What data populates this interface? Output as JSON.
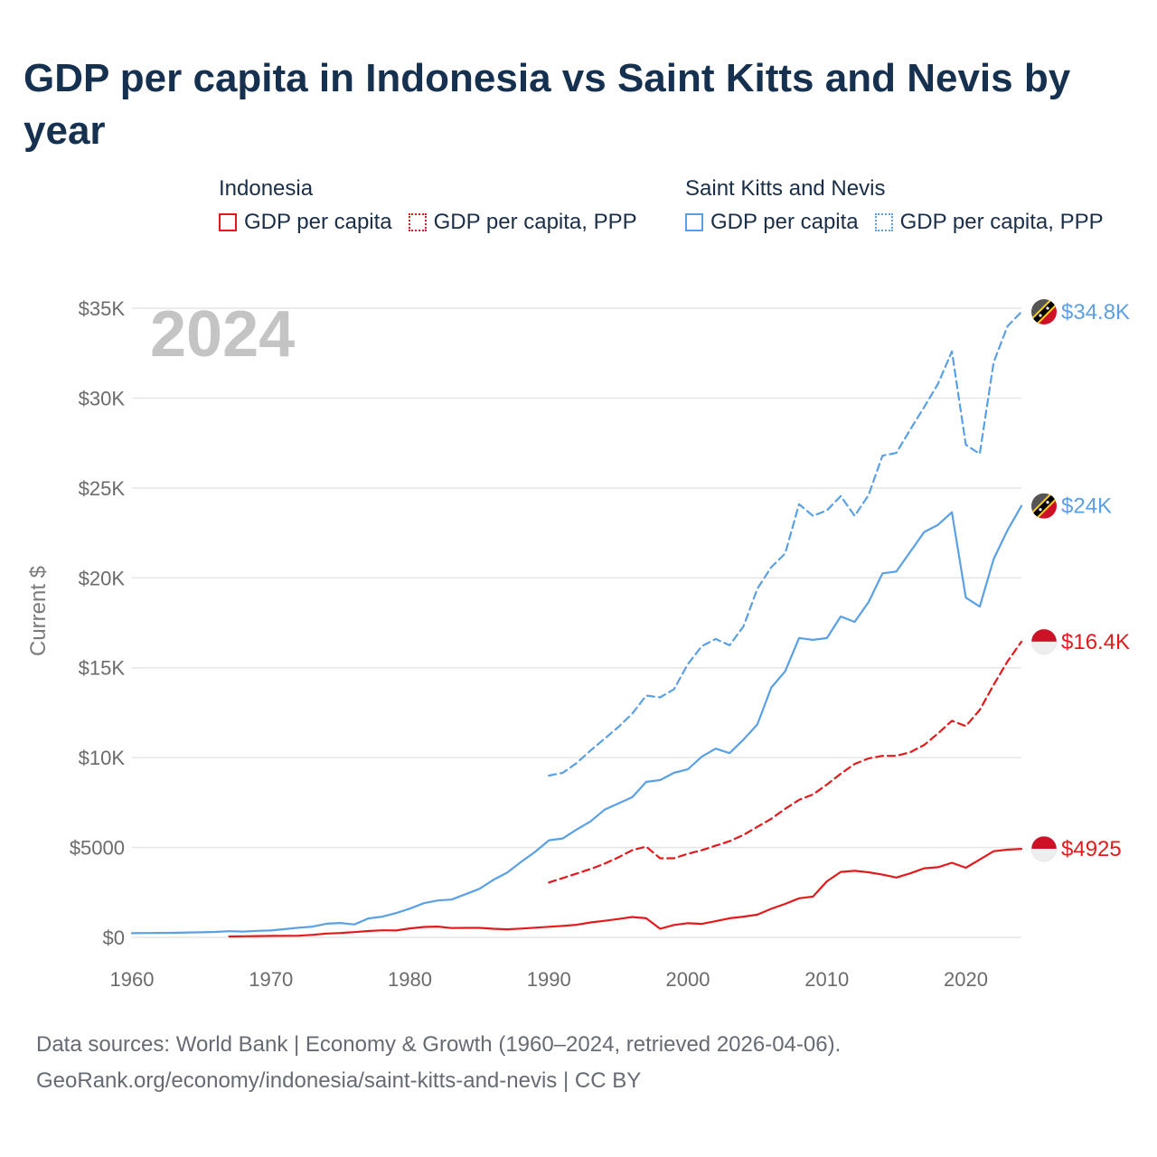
{
  "title": "GDP per capita in Indonesia vs Saint Kitts and Nevis by year",
  "legend": {
    "groups": [
      {
        "name": "Indonesia",
        "items": [
          {
            "label": "GDP per capita",
            "style": "solid",
            "color": "#e31a1c"
          },
          {
            "label": "GDP per capita, PPP",
            "style": "dotted",
            "color": "#e31a1c"
          }
        ]
      },
      {
        "name": "Saint Kitts and Nevis",
        "items": [
          {
            "label": "GDP per capita",
            "style": "solid",
            "color": "#5aa0e6"
          },
          {
            "label": "GDP per capita, PPP",
            "style": "dotted",
            "color": "#5aa0e6"
          }
        ]
      }
    ]
  },
  "footer": {
    "line1": "Data sources: World Bank | Economy & Growth (1960–2024, retrieved 2026-04-06).",
    "line2": "GeoRank.org/economy/indonesia/saint-kitts-and-nevis | CC BY"
  },
  "chart_data": {
    "type": "line",
    "year_label": "2024",
    "ylabel": "Current $",
    "xlabel": "",
    "xlim": [
      1960,
      2024
    ],
    "ylim": [
      0,
      35000
    ],
    "x_ticks": [
      1960,
      1970,
      1980,
      1990,
      2000,
      2010,
      2020
    ],
    "x_tick_labels": [
      "1960",
      "1970",
      "1980",
      "1990",
      "2000",
      "2010",
      "2020"
    ],
    "y_ticks": [
      0,
      5000,
      10000,
      15000,
      20000,
      25000,
      30000,
      35000
    ],
    "y_tick_labels": [
      "$0",
      "$5000",
      "$10K",
      "$15K",
      "$20K",
      "$25K",
      "$30K",
      "$35K"
    ],
    "grid": true,
    "series": [
      {
        "name": "Saint Kitts and Nevis GDP per capita, PPP",
        "color": "#5aa0e6",
        "dash": "dashed",
        "end_label": "$34.8K",
        "end_value": 34800,
        "marker": "flag-saint-kitts-and-nevis",
        "points": [
          [
            1990,
            9000
          ],
          [
            1991,
            9150
          ],
          [
            1992,
            9700
          ],
          [
            1993,
            10400
          ],
          [
            1994,
            11050
          ],
          [
            1995,
            11700
          ],
          [
            1996,
            12450
          ],
          [
            1997,
            13450
          ],
          [
            1998,
            13350
          ],
          [
            1999,
            13800
          ],
          [
            2000,
            15200
          ],
          [
            2001,
            16200
          ],
          [
            2002,
            16600
          ],
          [
            2003,
            16250
          ],
          [
            2004,
            17300
          ],
          [
            2005,
            19400
          ],
          [
            2006,
            20600
          ],
          [
            2007,
            21350
          ],
          [
            2008,
            24100
          ],
          [
            2009,
            23450
          ],
          [
            2010,
            23750
          ],
          [
            2011,
            24550
          ],
          [
            2012,
            23450
          ],
          [
            2013,
            24600
          ],
          [
            2014,
            26800
          ],
          [
            2015,
            26950
          ],
          [
            2016,
            28250
          ],
          [
            2017,
            29500
          ],
          [
            2018,
            30800
          ],
          [
            2019,
            32600
          ],
          [
            2020,
            27400
          ],
          [
            2021,
            26900
          ],
          [
            2022,
            32000
          ],
          [
            2023,
            34000
          ],
          [
            2024,
            34800
          ]
        ]
      },
      {
        "name": "Saint Kitts and Nevis GDP per capita",
        "color": "#5aa0e6",
        "dash": "solid",
        "end_label": "$24K",
        "end_value": 24000,
        "marker": "flag-saint-kitts-and-nevis",
        "points": [
          [
            1960,
            230
          ],
          [
            1961,
            240
          ],
          [
            1962,
            245
          ],
          [
            1963,
            250
          ],
          [
            1964,
            270
          ],
          [
            1965,
            280
          ],
          [
            1966,
            300
          ],
          [
            1967,
            340
          ],
          [
            1968,
            320
          ],
          [
            1969,
            360
          ],
          [
            1970,
            380
          ],
          [
            1971,
            460
          ],
          [
            1972,
            540
          ],
          [
            1973,
            600
          ],
          [
            1974,
            760
          ],
          [
            1975,
            800
          ],
          [
            1976,
            720
          ],
          [
            1977,
            1050
          ],
          [
            1978,
            1150
          ],
          [
            1979,
            1350
          ],
          [
            1980,
            1600
          ],
          [
            1981,
            1900
          ],
          [
            1982,
            2050
          ],
          [
            1983,
            2100
          ],
          [
            1984,
            2400
          ],
          [
            1985,
            2700
          ],
          [
            1986,
            3200
          ],
          [
            1987,
            3600
          ],
          [
            1988,
            4200
          ],
          [
            1989,
            4750
          ],
          [
            1990,
            5400
          ],
          [
            1991,
            5500
          ],
          [
            1992,
            6000
          ],
          [
            1993,
            6450
          ],
          [
            1994,
            7100
          ],
          [
            1995,
            7450
          ],
          [
            1996,
            7800
          ],
          [
            1997,
            8650
          ],
          [
            1998,
            8750
          ],
          [
            1999,
            9150
          ],
          [
            2000,
            9350
          ],
          [
            2001,
            10050
          ],
          [
            2002,
            10500
          ],
          [
            2003,
            10250
          ],
          [
            2004,
            11000
          ],
          [
            2005,
            11850
          ],
          [
            2006,
            13900
          ],
          [
            2007,
            14800
          ],
          [
            2008,
            16650
          ],
          [
            2009,
            16550
          ],
          [
            2010,
            16650
          ],
          [
            2011,
            17850
          ],
          [
            2012,
            17550
          ],
          [
            2013,
            18650
          ],
          [
            2014,
            20250
          ],
          [
            2015,
            20350
          ],
          [
            2016,
            21450
          ],
          [
            2017,
            22550
          ],
          [
            2018,
            22950
          ],
          [
            2019,
            23650
          ],
          [
            2020,
            18900
          ],
          [
            2021,
            18400
          ],
          [
            2022,
            21050
          ],
          [
            2023,
            22650
          ],
          [
            2024,
            24000
          ]
        ]
      },
      {
        "name": "Indonesia GDP per capita, PPP",
        "color": "#e31a1c",
        "dash": "dashed",
        "end_label": "$16.4K",
        "end_value": 16450,
        "marker": "flag-indonesia",
        "points": [
          [
            1990,
            3050
          ],
          [
            1991,
            3300
          ],
          [
            1992,
            3550
          ],
          [
            1993,
            3800
          ],
          [
            1994,
            4100
          ],
          [
            1995,
            4450
          ],
          [
            1996,
            4850
          ],
          [
            1997,
            5050
          ],
          [
            1998,
            4400
          ],
          [
            1999,
            4400
          ],
          [
            2000,
            4650
          ],
          [
            2001,
            4850
          ],
          [
            2002,
            5100
          ],
          [
            2003,
            5350
          ],
          [
            2004,
            5700
          ],
          [
            2005,
            6150
          ],
          [
            2006,
            6600
          ],
          [
            2007,
            7150
          ],
          [
            2008,
            7650
          ],
          [
            2009,
            7950
          ],
          [
            2010,
            8500
          ],
          [
            2011,
            9100
          ],
          [
            2012,
            9650
          ],
          [
            2013,
            9950
          ],
          [
            2014,
            10100
          ],
          [
            2015,
            10100
          ],
          [
            2016,
            10300
          ],
          [
            2017,
            10700
          ],
          [
            2018,
            11350
          ],
          [
            2019,
            12050
          ],
          [
            2020,
            11750
          ],
          [
            2021,
            12650
          ],
          [
            2022,
            14050
          ],
          [
            2023,
            15350
          ],
          [
            2024,
            16450
          ]
        ]
      },
      {
        "name": "Indonesia GDP per capita",
        "color": "#e31a1c",
        "dash": "solid",
        "end_label": "$4925",
        "end_value": 4925,
        "marker": "flag-indonesia",
        "points": [
          [
            1967,
            50
          ],
          [
            1968,
            60
          ],
          [
            1969,
            70
          ],
          [
            1970,
            80
          ],
          [
            1971,
            85
          ],
          [
            1972,
            90
          ],
          [
            1973,
            140
          ],
          [
            1974,
            210
          ],
          [
            1975,
            240
          ],
          [
            1976,
            290
          ],
          [
            1977,
            350
          ],
          [
            1978,
            390
          ],
          [
            1979,
            380
          ],
          [
            1980,
            500
          ],
          [
            1981,
            580
          ],
          [
            1982,
            600
          ],
          [
            1983,
            520
          ],
          [
            1984,
            530
          ],
          [
            1985,
            530
          ],
          [
            1986,
            480
          ],
          [
            1987,
            450
          ],
          [
            1988,
            490
          ],
          [
            1989,
            540
          ],
          [
            1990,
            590
          ],
          [
            1991,
            640
          ],
          [
            1992,
            700
          ],
          [
            1993,
            830
          ],
          [
            1994,
            920
          ],
          [
            1995,
            1020
          ],
          [
            1996,
            1130
          ],
          [
            1997,
            1060
          ],
          [
            1998,
            480
          ],
          [
            1999,
            690
          ],
          [
            2000,
            790
          ],
          [
            2001,
            750
          ],
          [
            2002,
            900
          ],
          [
            2003,
            1060
          ],
          [
            2004,
            1150
          ],
          [
            2005,
            1260
          ],
          [
            2006,
            1590
          ],
          [
            2007,
            1860
          ],
          [
            2008,
            2170
          ],
          [
            2009,
            2270
          ],
          [
            2010,
            3120
          ],
          [
            2011,
            3640
          ],
          [
            2012,
            3700
          ],
          [
            2013,
            3620
          ],
          [
            2014,
            3490
          ],
          [
            2015,
            3330
          ],
          [
            2016,
            3560
          ],
          [
            2017,
            3840
          ],
          [
            2018,
            3900
          ],
          [
            2019,
            4150
          ],
          [
            2020,
            3870
          ],
          [
            2021,
            4330
          ],
          [
            2022,
            4790
          ],
          [
            2023,
            4880
          ],
          [
            2024,
            4925
          ]
        ]
      }
    ]
  }
}
